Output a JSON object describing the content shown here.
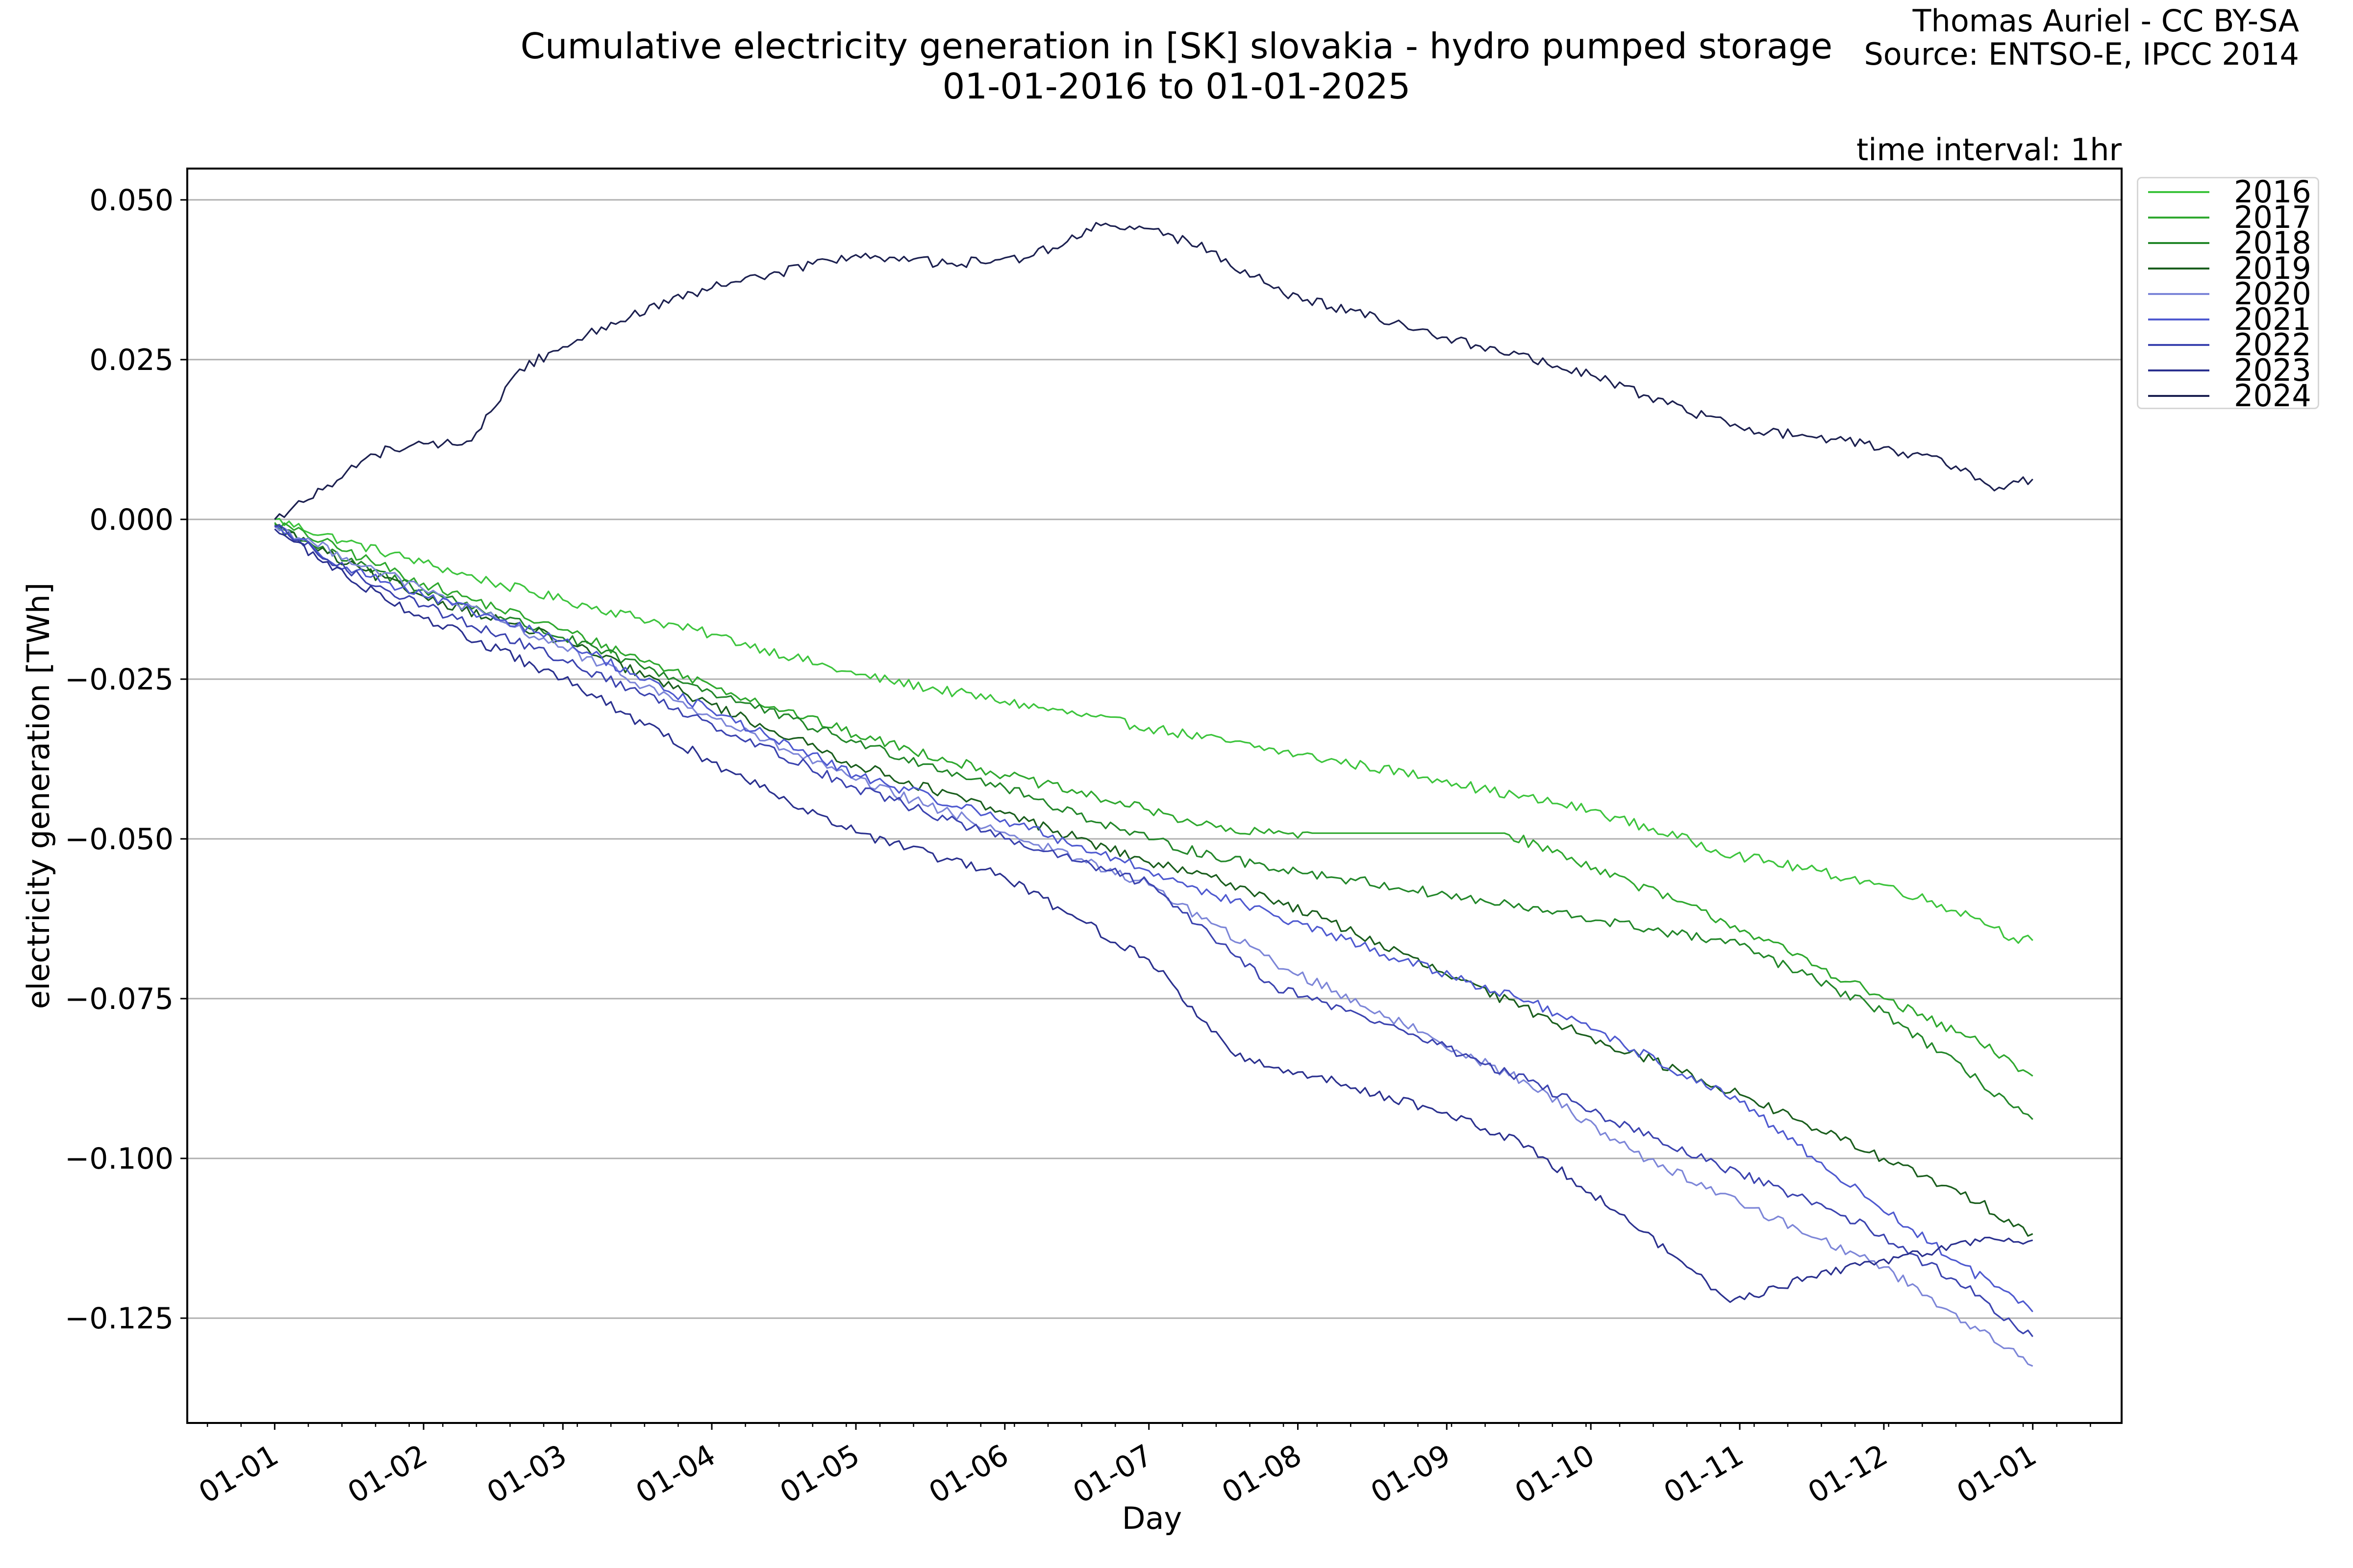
{
  "header": {
    "title_line1": "Cumulative electricity generation in [SK] slovakia - hydro pumped storage",
    "title_line2": "01-01-2016 to 01-01-2025",
    "credit_line1": "Thomas Auriel - CC BY-SA",
    "credit_line2": "Source: ENTSO-E, IPCC 2014",
    "interval_note": "time interval: 1hr"
  },
  "chart_data": {
    "type": "line",
    "title": "Cumulative electricity generation in [SK] slovakia - hydro pumped storage\n01-01-2016 to 01-01-2025",
    "xlabel": "Day",
    "ylabel": "electricity generation [TWh]",
    "x_unit": "day of year (0 = 01-01)",
    "xlim": [
      -18.2,
      384.5
    ],
    "ylim": [
      -0.1414,
      0.0549
    ],
    "grid": "horizontal",
    "legend_position": "outside-top-right",
    "yticks": [
      0.05,
      0.025,
      0.0,
      -0.025,
      -0.05,
      -0.075,
      -0.1,
      -0.125
    ],
    "ytick_labels": [
      "0.050",
      "0.025",
      "0.000",
      "−0.025",
      "−0.050",
      "−0.075",
      "−0.100",
      "−0.125"
    ],
    "xticks": [
      0,
      31,
      60,
      91,
      121,
      152,
      182,
      213,
      244,
      274,
      305,
      335,
      366
    ],
    "xtick_labels": [
      "01-01",
      "01-02",
      "01-03",
      "01-04",
      "01-05",
      "01-06",
      "01-07",
      "01-08",
      "01-09",
      "01-10",
      "01-11",
      "01-12",
      "01-01"
    ],
    "series": [
      {
        "name": "2016",
        "color": "#3dc43d",
        "points": [
          [
            0,
            0
          ],
          [
            15,
            -0.0035
          ],
          [
            31,
            -0.0068
          ],
          [
            45,
            -0.0098
          ],
          [
            60,
            -0.0126
          ],
          [
            91,
            -0.018
          ],
          [
            121,
            -0.0243
          ],
          [
            152,
            -0.0285
          ],
          [
            182,
            -0.0326
          ],
          [
            213,
            -0.0368
          ],
          [
            244,
            -0.0408
          ],
          [
            251,
            -0.0422
          ],
          [
            274,
            -0.0455
          ],
          [
            304,
            -0.0525
          ],
          [
            335,
            -0.0572
          ],
          [
            355,
            -0.0625
          ],
          [
            362,
            -0.0655
          ],
          [
            366,
            -0.0659
          ]
        ]
      },
      {
        "name": "2017",
        "color": "#2fa82f",
        "points": [
          [
            0,
            -0.0005
          ],
          [
            15,
            -0.005
          ],
          [
            31,
            -0.01
          ],
          [
            60,
            -0.0173
          ],
          [
            91,
            -0.026
          ],
          [
            121,
            -0.0337
          ],
          [
            152,
            -0.04
          ],
          [
            182,
            -0.0455
          ],
          [
            200,
            -0.049
          ],
          [
            216,
            -0.0491
          ],
          [
            256,
            -0.0491
          ],
          [
            275,
            -0.0545
          ],
          [
            304,
            -0.0636
          ],
          [
            335,
            -0.075
          ],
          [
            355,
            -0.082
          ],
          [
            366,
            -0.0871
          ]
        ]
      },
      {
        "name": "2018",
        "color": "#23872a",
        "points": [
          [
            0,
            -0.0008
          ],
          [
            15,
            -0.0065
          ],
          [
            31,
            -0.011
          ],
          [
            60,
            -0.0185
          ],
          [
            91,
            -0.027
          ],
          [
            121,
            -0.0349
          ],
          [
            152,
            -0.042
          ],
          [
            182,
            -0.0501
          ],
          [
            199,
            -0.0533
          ],
          [
            225,
            -0.0565
          ],
          [
            252,
            -0.0598
          ],
          [
            277,
            -0.0629
          ],
          [
            305,
            -0.0666
          ],
          [
            335,
            -0.0771
          ],
          [
            355,
            -0.088
          ],
          [
            366,
            -0.0939
          ]
        ]
      },
      {
        "name": "2019",
        "color": "#1a5e1d",
        "points": [
          [
            0,
            -0.001
          ],
          [
            15,
            -0.007
          ],
          [
            31,
            -0.012
          ],
          [
            60,
            -0.019
          ],
          [
            91,
            -0.029
          ],
          [
            121,
            -0.0384
          ],
          [
            152,
            -0.046
          ],
          [
            182,
            -0.0537
          ],
          [
            199,
            -0.0569
          ],
          [
            220,
            -0.063
          ],
          [
            244,
            -0.0713
          ],
          [
            274,
            -0.081
          ],
          [
            305,
            -0.09
          ],
          [
            335,
            -0.1
          ],
          [
            355,
            -0.107
          ],
          [
            366,
            -0.1118
          ]
        ]
      },
      {
        "name": "2020",
        "color": "#7d86d8",
        "points": [
          [
            0,
            -0.001
          ],
          [
            15,
            -0.006
          ],
          [
            31,
            -0.011
          ],
          [
            60,
            -0.02
          ],
          [
            91,
            -0.031
          ],
          [
            121,
            -0.0408
          ],
          [
            152,
            -0.049
          ],
          [
            182,
            -0.0572
          ],
          [
            208,
            -0.0693
          ],
          [
            235,
            -0.079
          ],
          [
            261,
            -0.0883
          ],
          [
            283,
            -0.099
          ],
          [
            305,
            -0.107
          ],
          [
            335,
            -0.117
          ],
          [
            355,
            -0.127
          ],
          [
            366,
            -0.1325
          ]
        ]
      },
      {
        "name": "2021",
        "color": "#4f5ad0",
        "points": [
          [
            0,
            -0.001
          ],
          [
            15,
            -0.0075
          ],
          [
            31,
            -0.012
          ],
          [
            60,
            -0.019
          ],
          [
            91,
            -0.03
          ],
          [
            121,
            -0.04
          ],
          [
            152,
            -0.047
          ],
          [
            182,
            -0.055
          ],
          [
            208,
            -0.062
          ],
          [
            235,
            -0.069
          ],
          [
            261,
            -0.0754
          ],
          [
            283,
            -0.083
          ],
          [
            305,
            -0.0912
          ],
          [
            333,
            -0.107
          ],
          [
            350,
            -0.116
          ],
          [
            366,
            -0.124
          ]
        ]
      },
      {
        "name": "2022",
        "color": "#3c44b0",
        "points": [
          [
            0,
            -0.0012
          ],
          [
            15,
            -0.008
          ],
          [
            31,
            -0.0135
          ],
          [
            60,
            -0.022
          ],
          [
            91,
            -0.032
          ],
          [
            121,
            -0.042
          ],
          [
            152,
            -0.05
          ],
          [
            182,
            -0.057
          ],
          [
            208,
            -0.073
          ],
          [
            235,
            -0.08
          ],
          [
            261,
            -0.0879
          ],
          [
            290,
            -0.098
          ],
          [
            327,
            -0.109
          ],
          [
            350,
            -0.119
          ],
          [
            366,
            -0.1279
          ]
        ]
      },
      {
        "name": "2023",
        "color": "#2b318f",
        "points": [
          [
            0,
            -0.0015
          ],
          [
            15,
            -0.009
          ],
          [
            30,
            -0.015
          ],
          [
            60,
            -0.025
          ],
          [
            91,
            -0.038
          ],
          [
            121,
            -0.049
          ],
          [
            152,
            -0.056
          ],
          [
            182,
            -0.0689
          ],
          [
            200,
            -0.084
          ],
          [
            213,
            -0.0865
          ],
          [
            240,
            -0.092
          ],
          [
            261,
            -0.098
          ],
          [
            280,
            -0.1087
          ],
          [
            296,
            -0.118
          ],
          [
            303,
            -0.1225
          ],
          [
            320,
            -0.1185
          ],
          [
            340,
            -0.115
          ],
          [
            355,
            -0.113
          ],
          [
            366,
            -0.1128
          ]
        ]
      },
      {
        "name": "2024",
        "color": "#1c2050",
        "points": [
          [
            0,
            0
          ],
          [
            6,
            0.0027
          ],
          [
            15,
            0.0075
          ],
          [
            24,
            0.0113
          ],
          [
            35,
            0.0118
          ],
          [
            41,
            0.0123
          ],
          [
            51,
            0.0235
          ],
          [
            60,
            0.027
          ],
          [
            70,
            0.0308
          ],
          [
            91,
            0.0362
          ],
          [
            121,
            0.0414
          ],
          [
            140,
            0.04
          ],
          [
            157,
            0.041
          ],
          [
            172,
            0.046
          ],
          [
            182,
            0.0455
          ],
          [
            195,
            0.042
          ],
          [
            210,
            0.0353
          ],
          [
            244,
            0.0285
          ],
          [
            274,
            0.0226
          ],
          [
            290,
            0.018
          ],
          [
            305,
            0.0144
          ],
          [
            335,
            0.0113
          ],
          [
            352,
            0.008
          ],
          [
            358,
            0.0045
          ],
          [
            362,
            0.006
          ],
          [
            366,
            0.0063
          ]
        ]
      }
    ]
  }
}
